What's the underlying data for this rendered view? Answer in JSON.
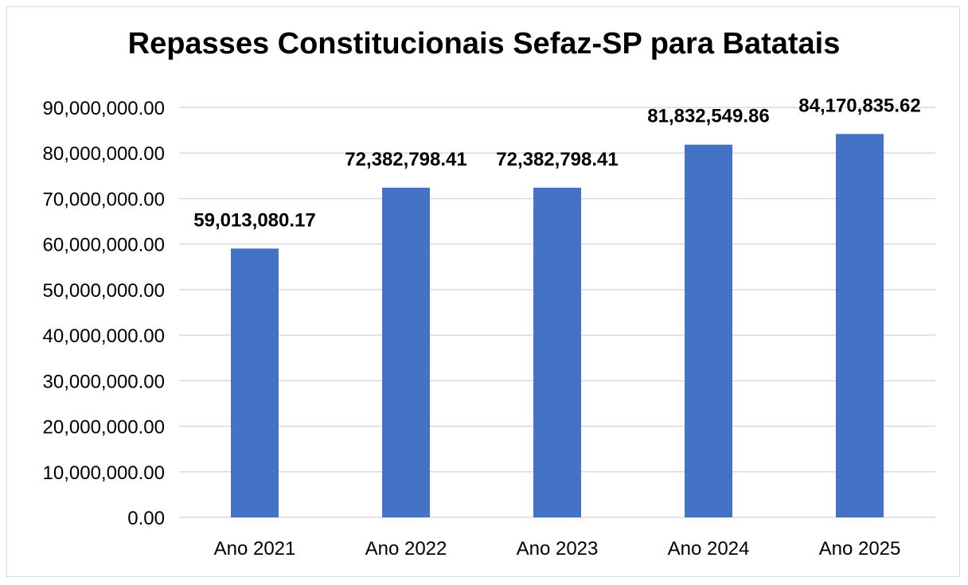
{
  "chart_data": {
    "type": "bar",
    "title": "Repasses Constitucionais Sefaz-SP para Batatais",
    "xlabel": "",
    "ylabel": "",
    "categories": [
      "Ano 2021",
      "Ano 2022",
      "Ano 2023",
      "Ano 2024",
      "Ano 2025"
    ],
    "values": [
      59013080.17,
      72382798.41,
      72382798.41,
      81832549.86,
      84170835.62
    ],
    "data_labels": [
      "59,013,080.17",
      "72,382,798.41",
      "72,382,798.41",
      "81,832,549.86",
      "84,170,835.62"
    ],
    "ylim": [
      0,
      90000000
    ],
    "y_ticks": [
      0,
      10000000,
      20000000,
      30000000,
      40000000,
      50000000,
      60000000,
      70000000,
      80000000,
      90000000
    ],
    "y_tick_labels": [
      "0.00",
      "10,000,000.00",
      "20,000,000.00",
      "30,000,000.00",
      "40,000,000.00",
      "50,000,000.00",
      "60,000,000.00",
      "70,000,000.00",
      "80,000,000.00",
      "90,000,000.00"
    ],
    "grid": true,
    "legend": "none",
    "bar_color": "#4472c4",
    "grid_color": "#d9d9d9"
  }
}
